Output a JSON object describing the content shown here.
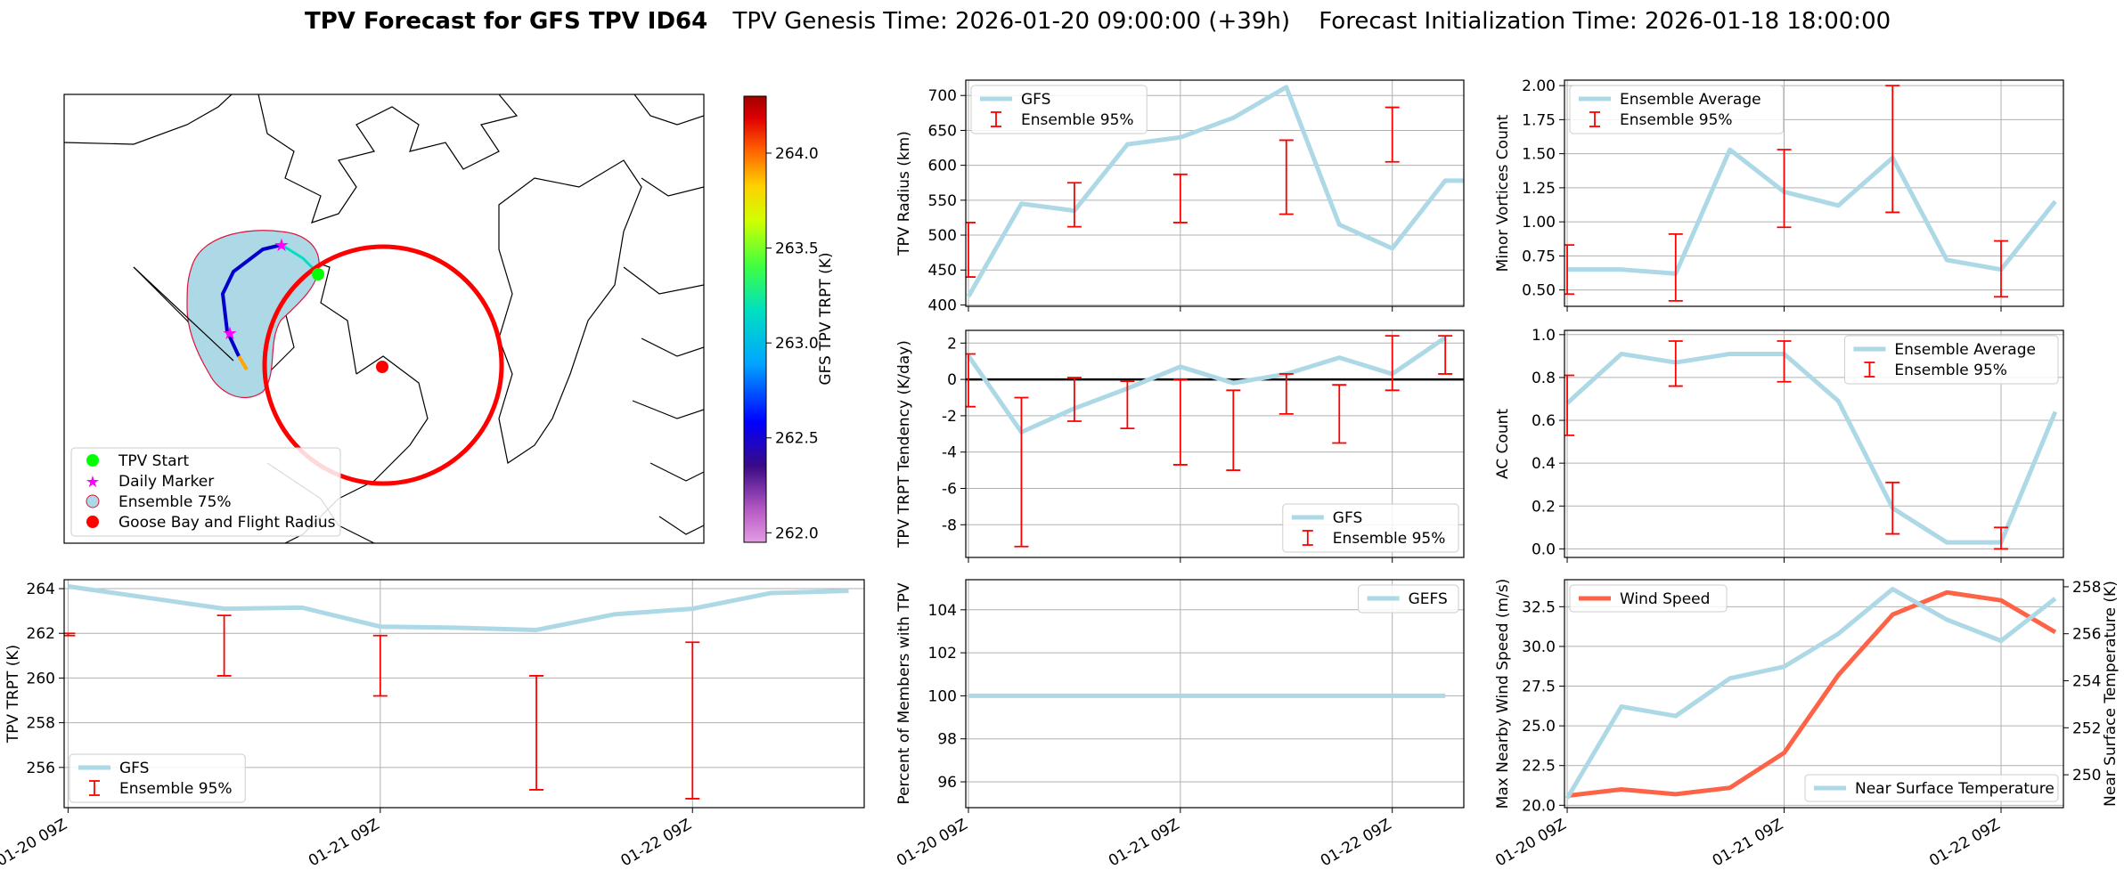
{
  "title": {
    "bold": "TPV Forecast for GFS TPV ID64",
    "genesis": "TPV Genesis Time: 2026-01-20 09:00:00 (+39h)",
    "init": "Forecast Initialization Time: 2026-01-18 18:00:00"
  },
  "colors": {
    "series": "#add8e6",
    "error": "#ff0000",
    "wind": "#ff6347",
    "temp_axis": "#4169e1"
  },
  "map": {
    "colorbar": {
      "label": "GFS TPV TRPT (K)",
      "ticks": [
        "264.0",
        "263.5",
        "263.0",
        "262.5",
        "262.0"
      ],
      "range": [
        261.95,
        264.3
      ]
    },
    "legend": [
      "TPV Start",
      "Daily Marker",
      "Ensemble 75%",
      "Goose Bay and Flight Radius"
    ]
  },
  "chart_data": [
    {
      "id": "radius",
      "type": "line",
      "ylabel": "TPV Radius (km)",
      "ylim": [
        398,
        722
      ],
      "yticks": [
        400,
        450,
        500,
        550,
        600,
        650,
        700
      ],
      "x": [
        0,
        1,
        2,
        3,
        4,
        5,
        6,
        7,
        8,
        9,
        10
      ],
      "series": [
        {
          "name": "GFS",
          "values": [
            412,
            545,
            535,
            630,
            640,
            668,
            712,
            515,
            481,
            578,
            578
          ]
        }
      ],
      "errorbars": {
        "name": "Ensemble 95%",
        "x": [
          0,
          2,
          4,
          6,
          8
        ],
        "lo": [
          440,
          512,
          518,
          530,
          605
        ],
        "hi": [
          518,
          575,
          587,
          636,
          683
        ]
      },
      "xticks": [
        {
          "x": 0,
          "label": "01-20 09Z"
        },
        {
          "x": 4,
          "label": "01-21 09Z"
        },
        {
          "x": 8,
          "label": "01-22 09Z"
        }
      ],
      "legend": "top-left"
    },
    {
      "id": "minor",
      "type": "line",
      "ylabel": "Minor Vortices Count",
      "ylim": [
        0.38,
        2.04
      ],
      "yticks": [
        "0.50",
        "0.75",
        "1.00",
        "1.25",
        "1.50",
        "1.75",
        "2.00"
      ],
      "x": [
        0,
        1,
        2,
        3,
        4,
        5,
        6,
        7,
        8,
        9
      ],
      "series": [
        {
          "name": "Ensemble Average",
          "values": [
            0.65,
            0.65,
            0.62,
            1.53,
            1.22,
            1.12,
            1.47,
            0.72,
            0.65,
            1.15
          ]
        }
      ],
      "errorbars": {
        "name": "Ensemble 95%",
        "x": [
          0,
          2,
          4,
          6,
          8
        ],
        "lo": [
          0.47,
          0.42,
          0.96,
          1.07,
          0.45
        ],
        "hi": [
          0.83,
          0.91,
          1.53,
          2.0,
          0.86
        ]
      },
      "legend": "top-left"
    },
    {
      "id": "tendency",
      "type": "line",
      "ylabel": "TPV TRPT Tendency (K/day)",
      "ylim": [
        -9.8,
        2.7
      ],
      "yticks": [
        -8,
        -6,
        -4,
        -2,
        0,
        2
      ],
      "x": [
        0,
        1,
        2,
        3,
        4,
        5,
        6,
        7,
        8,
        9
      ],
      "series": [
        {
          "name": "GFS",
          "values": [
            1.3,
            -2.9,
            -1.6,
            -0.5,
            0.7,
            -0.2,
            0.3,
            1.2,
            0.3,
            2.3
          ]
        }
      ],
      "errorbars": {
        "name": "Ensemble 95%",
        "x": [
          0,
          1,
          2,
          3,
          4,
          5,
          6,
          7,
          8,
          9
        ],
        "lo": [
          -1.5,
          -9.2,
          -2.3,
          -2.7,
          -4.7,
          -5.0,
          -1.9,
          -3.5,
          -0.6,
          0.3
        ],
        "hi": [
          1.4,
          -1.0,
          0.1,
          -0.1,
          0.0,
          -0.6,
          0.3,
          -0.3,
          2.4,
          2.4
        ]
      },
      "legend": "bottom-right"
    },
    {
      "id": "ac",
      "type": "line",
      "ylabel": "AC Count",
      "ylim": [
        -0.04,
        1.02
      ],
      "yticks": [
        "0.0",
        "0.2",
        "0.4",
        "0.6",
        "0.8",
        "1.0"
      ],
      "x": [
        0,
        1,
        2,
        3,
        4,
        5,
        6,
        7,
        8,
        9
      ],
      "series": [
        {
          "name": "Ensemble Average",
          "values": [
            0.68,
            0.91,
            0.87,
            0.91,
            0.91,
            0.69,
            0.19,
            0.03,
            0.03,
            0.64
          ]
        }
      ],
      "errorbars": {
        "name": "Ensemble 95%",
        "x": [
          0,
          2,
          4,
          6,
          8
        ],
        "lo": [
          0.53,
          0.76,
          0.78,
          0.07,
          0.0
        ],
        "hi": [
          0.81,
          0.97,
          0.97,
          0.31,
          0.1
        ]
      },
      "legend": "top-right"
    },
    {
      "id": "trpt",
      "type": "line",
      "ylabel": "TPV TRPT (K)",
      "ylim": [
        254.2,
        264.4
      ],
      "yticks": [
        256,
        258,
        260,
        262,
        264
      ],
      "x": [
        0,
        1,
        2,
        3,
        4,
        5,
        6,
        7,
        8,
        9,
        10
      ],
      "series": [
        {
          "name": "GFS",
          "values": [
            264.1,
            263.6,
            263.1,
            263.15,
            262.3,
            262.25,
            262.15,
            262.85,
            263.1,
            263.8,
            263.9
          ]
        }
      ],
      "errorbars": {
        "name": "Ensemble 95%",
        "x": [
          0,
          2,
          4,
          6,
          8
        ],
        "lo": [
          261.9,
          260.1,
          259.2,
          255.0,
          254.6
        ],
        "hi": [
          262.0,
          262.8,
          261.9,
          260.1,
          261.6
        ]
      },
      "xticks": [
        {
          "x": 0,
          "label": "01-20 09Z"
        },
        {
          "x": 4,
          "label": "01-21 09Z"
        },
        {
          "x": 8,
          "label": "01-22 09Z"
        }
      ],
      "legend": "bottom-left"
    },
    {
      "id": "percent",
      "type": "line",
      "ylabel": "Percent of Members with TPV",
      "ylim": [
        94.8,
        105.4
      ],
      "yticks": [
        96,
        98,
        100,
        102,
        104
      ],
      "x": [
        0,
        1,
        2,
        3,
        4,
        5,
        6,
        7,
        8,
        9
      ],
      "series": [
        {
          "name": "GEFS",
          "values": [
            100,
            100,
            100,
            100,
            100,
            100,
            100,
            100,
            100,
            100
          ]
        }
      ],
      "xticks": [
        {
          "x": 0,
          "label": "01-20 09Z"
        },
        {
          "x": 4,
          "label": "01-21 09Z"
        },
        {
          "x": 8,
          "label": "01-22 09Z"
        }
      ],
      "legend": "top-right"
    },
    {
      "id": "wind",
      "type": "line",
      "ylabel": "Max Nearby Wind Speed (m/s)",
      "ylabel_right": "Near Surface Temperature (K)",
      "ylim": [
        19.85,
        34.2
      ],
      "yticks": [
        "20.0",
        "22.5",
        "25.0",
        "27.5",
        "30.0",
        "32.5"
      ],
      "ylim_right": [
        248.6,
        258.3
      ],
      "yticks_right": [
        250,
        252,
        254,
        256,
        258
      ],
      "x": [
        0,
        1,
        2,
        3,
        4,
        5,
        6,
        7,
        8,
        9
      ],
      "series": [
        {
          "name": "Wind Speed",
          "axis": "left",
          "values": [
            20.6,
            21.0,
            20.7,
            21.1,
            23.3,
            28.2,
            32.0,
            33.4,
            32.9,
            30.9
          ]
        },
        {
          "name": "Near Surface Temperature",
          "axis": "right",
          "values": [
            249.0,
            252.9,
            252.5,
            254.1,
            254.6,
            256.0,
            257.9,
            256.6,
            255.7,
            257.5
          ]
        }
      ],
      "xticks": [
        {
          "x": 0,
          "label": "01-20 09Z"
        },
        {
          "x": 4,
          "label": "01-21 09Z"
        },
        {
          "x": 8,
          "label": "01-22 09Z"
        }
      ],
      "legend_left": "top-left",
      "legend_right": "bottom-right"
    }
  ]
}
